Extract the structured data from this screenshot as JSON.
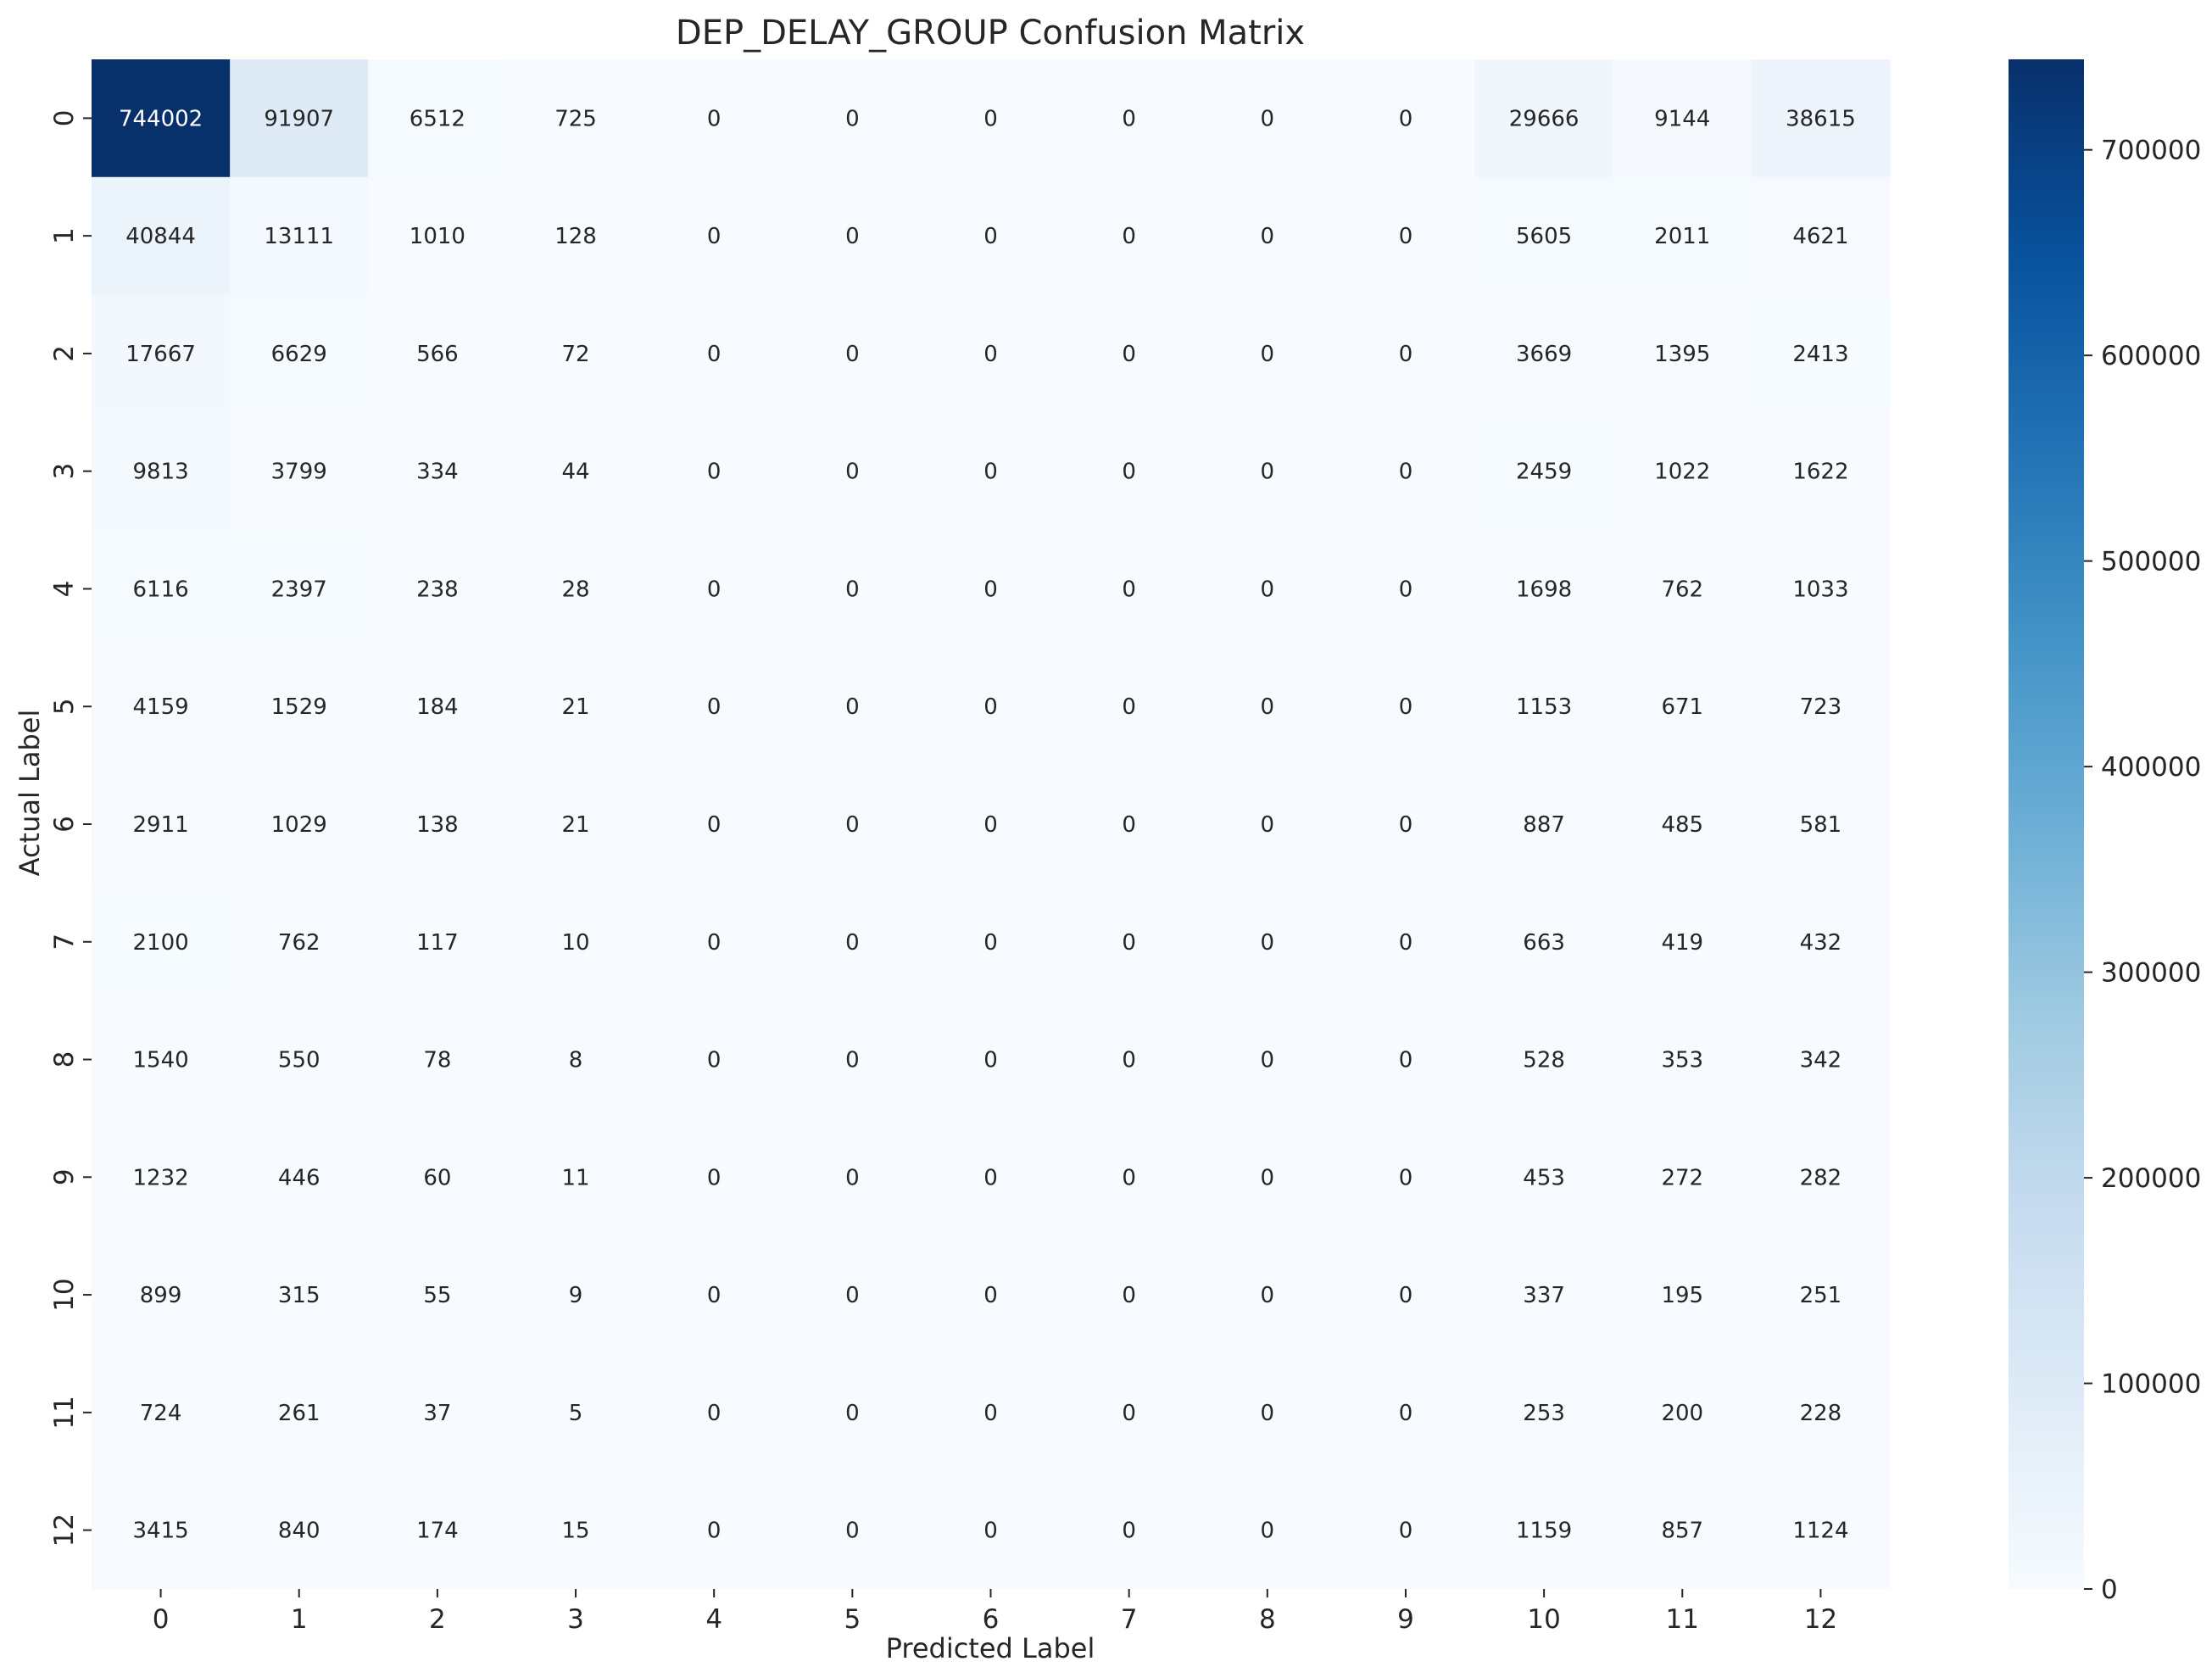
{
  "chart_data": {
    "type": "heatmap",
    "title": "DEP_DELAY_GROUP Confusion Matrix",
    "xlabel": "Predicted Label",
    "ylabel": "Actual Label",
    "x_categories": [
      "0",
      "1",
      "2",
      "3",
      "4",
      "5",
      "6",
      "7",
      "8",
      "9",
      "10",
      "11",
      "12"
    ],
    "y_categories": [
      "0",
      "1",
      "2",
      "3",
      "4",
      "5",
      "6",
      "7",
      "8",
      "9",
      "10",
      "11",
      "12"
    ],
    "values": [
      [
        744002,
        91907,
        6512,
        725,
        0,
        0,
        0,
        0,
        0,
        0,
        29666,
        9144,
        38615
      ],
      [
        40844,
        13111,
        1010,
        128,
        0,
        0,
        0,
        0,
        0,
        0,
        5605,
        2011,
        4621
      ],
      [
        17667,
        6629,
        566,
        72,
        0,
        0,
        0,
        0,
        0,
        0,
        3669,
        1395,
        2413
      ],
      [
        9813,
        3799,
        334,
        44,
        0,
        0,
        0,
        0,
        0,
        0,
        2459,
        1022,
        1622
      ],
      [
        6116,
        2397,
        238,
        28,
        0,
        0,
        0,
        0,
        0,
        0,
        1698,
        762,
        1033
      ],
      [
        4159,
        1529,
        184,
        21,
        0,
        0,
        0,
        0,
        0,
        0,
        1153,
        671,
        723
      ],
      [
        2911,
        1029,
        138,
        21,
        0,
        0,
        0,
        0,
        0,
        0,
        887,
        485,
        581
      ],
      [
        2100,
        762,
        117,
        10,
        0,
        0,
        0,
        0,
        0,
        0,
        663,
        419,
        432
      ],
      [
        1540,
        550,
        78,
        8,
        0,
        0,
        0,
        0,
        0,
        0,
        528,
        353,
        342
      ],
      [
        1232,
        446,
        60,
        11,
        0,
        0,
        0,
        0,
        0,
        0,
        453,
        272,
        282
      ],
      [
        899,
        315,
        55,
        9,
        0,
        0,
        0,
        0,
        0,
        0,
        337,
        195,
        251
      ],
      [
        724,
        261,
        37,
        5,
        0,
        0,
        0,
        0,
        0,
        0,
        253,
        200,
        228
      ],
      [
        3415,
        840,
        174,
        15,
        0,
        0,
        0,
        0,
        0,
        0,
        1159,
        857,
        1124
      ]
    ],
    "colorscale": "Blues",
    "colorbar": {
      "min": 0,
      "max": 744002,
      "ticks": [
        0,
        100000,
        200000,
        300000,
        400000,
        500000,
        600000,
        700000
      ]
    },
    "grid": false
  }
}
